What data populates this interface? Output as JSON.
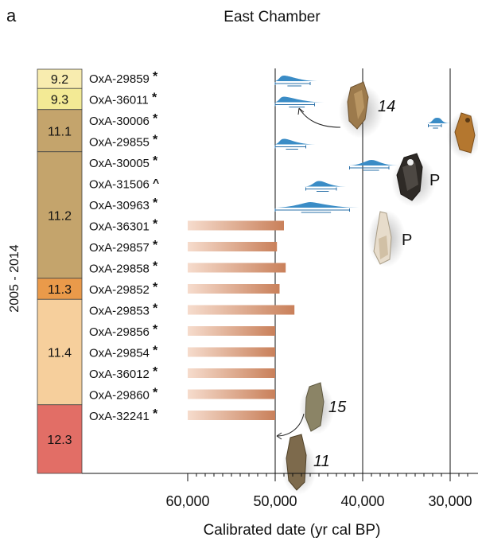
{
  "panel_label": "a",
  "chart_data": {
    "type": "range-bar",
    "title": "East Chamber",
    "xlabel": "Calibrated date (yr cal BP)",
    "ylabel": "2005 - 2014",
    "xlim": [
      60000,
      28000
    ],
    "x_reversed": true,
    "xticks": [
      60000,
      50000,
      40000,
      30000
    ],
    "xtick_labels": [
      "60,000",
      "50,000",
      "40,000",
      "30,000"
    ],
    "gridlines": [
      50000,
      40000,
      30000
    ],
    "colors": {
      "distribution": "#3a8cc6",
      "range_line": "#2a70a8",
      "bar_dark": "#c9805a",
      "bar_light": "#f6dccd"
    },
    "layers": [
      {
        "label": "9.2",
        "color": "#f8ecaf"
      },
      {
        "label": "9.3",
        "color": "#f3ea95"
      },
      {
        "label": "11.1",
        "color": "#c4a46c"
      },
      {
        "label": "11.2",
        "color": "#c4a46c"
      },
      {
        "label": "11.3",
        "color": "#ea9a4a"
      },
      {
        "label": "11.4",
        "color": "#f6cf9c"
      },
      {
        "label": "12.3",
        "color": "#e26e66"
      }
    ],
    "samples": [
      {
        "id": "OxA-29859",
        "mark": "*",
        "type": "dist",
        "peak": 49000,
        "r95": [
          50000,
          46000
        ]
      },
      {
        "id": "OxA-36011",
        "mark": "*",
        "type": "dist",
        "peak": 49000,
        "r95": [
          50000,
          45500
        ]
      },
      {
        "id": "OxA-30006",
        "mark": "*",
        "type": "dist",
        "peak": 31500,
        "r95": [
          32500,
          31000
        ]
      },
      {
        "id": "OxA-29855",
        "mark": "*",
        "type": "dist",
        "peak": 49000,
        "r95": [
          50000,
          46500
        ]
      },
      {
        "id": "OxA-30005",
        "mark": "*",
        "type": "dist",
        "peak": 39000,
        "r95": [
          41500,
          37000
        ]
      },
      {
        "id": "OxA-31506",
        "mark": "^",
        "type": "dist",
        "peak": 45000,
        "r95": [
          46500,
          43000
        ]
      },
      {
        "id": "OxA-30963",
        "mark": "*",
        "type": "dist",
        "peak": 46000,
        "r95": [
          50000,
          41500
        ]
      },
      {
        "id": "OxA-36301",
        "mark": "*",
        "type": "minimum",
        "value": 49000
      },
      {
        "id": "OxA-29857",
        "mark": "*",
        "type": "minimum",
        "value": 49800
      },
      {
        "id": "OxA-29858",
        "mark": "*",
        "type": "minimum",
        "value": 48800
      },
      {
        "id": "OxA-29852",
        "mark": "*",
        "type": "minimum",
        "value": 49500
      },
      {
        "id": "OxA-29853",
        "mark": "*",
        "type": "minimum",
        "value": 47800
      },
      {
        "id": "OxA-29856",
        "mark": "*",
        "type": "minimum",
        "value": 50000
      },
      {
        "id": "OxA-29854",
        "mark": "*",
        "type": "minimum",
        "value": 50000
      },
      {
        "id": "OxA-36012",
        "mark": "*",
        "type": "minimum",
        "value": 50000
      },
      {
        "id": "OxA-29860",
        "mark": "*",
        "type": "minimum",
        "value": 50000
      },
      {
        "id": "OxA-32241",
        "mark": "*",
        "type": "minimum",
        "value": 50000
      }
    ],
    "annotations": [
      {
        "text": "14"
      },
      {
        "text": "P"
      },
      {
        "text": "P"
      },
      {
        "text": "15"
      },
      {
        "text": "11"
      }
    ]
  }
}
